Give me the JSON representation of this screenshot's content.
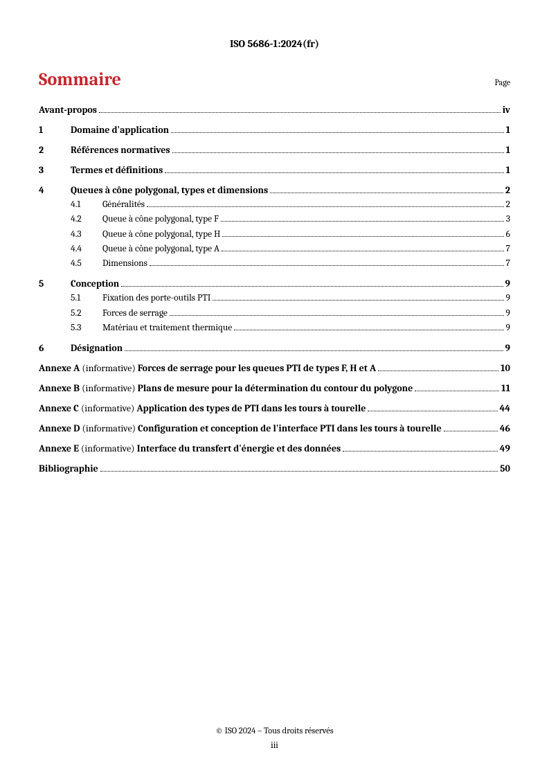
{
  "header": "ISO 5686-1:2024(fr)",
  "title": "Sommaire",
  "page_label": "Page",
  "entries": [
    {
      "kind": "plain-bold",
      "text": "Avant-propos",
      "page": "iv"
    },
    {
      "kind": "section",
      "num": "1",
      "text": "Domaine d'application",
      "page": "1"
    },
    {
      "kind": "section",
      "num": "2",
      "text": "Références normatives",
      "page": "1"
    },
    {
      "kind": "section",
      "num": "3",
      "text": "Termes et définitions",
      "page": "1"
    },
    {
      "kind": "section",
      "num": "4",
      "text": "Queues à cône polygonal, types et dimensions",
      "page": "2"
    },
    {
      "kind": "sub",
      "num": "4.1",
      "text": "Généralités",
      "page": "2"
    },
    {
      "kind": "sub",
      "num": "4.2",
      "text": "Queue à cône polygonal, type F",
      "page": "3"
    },
    {
      "kind": "sub",
      "num": "4.3",
      "text": "Queue à cône polygonal, type H",
      "page": "6"
    },
    {
      "kind": "sub",
      "num": "4.4",
      "text": "Queue à cône polygonal, type A",
      "page": "7"
    },
    {
      "kind": "sub",
      "num": "4.5",
      "text": "Dimensions",
      "page": "7"
    },
    {
      "kind": "section",
      "num": "5",
      "text": "Conception",
      "page": "9"
    },
    {
      "kind": "sub",
      "num": "5.1",
      "text": "Fixation des porte-outils PTI",
      "page": "9"
    },
    {
      "kind": "sub",
      "num": "5.2",
      "text": "Forces de serrage",
      "page": "9"
    },
    {
      "kind": "sub",
      "num": "5.3",
      "text": "Matériau et traitement thermique",
      "page": "9"
    },
    {
      "kind": "section",
      "num": "6",
      "text": "Désignation",
      "page": "9"
    },
    {
      "kind": "annex",
      "label": "Annexe A",
      "note": "(informative)",
      "title": "Forces de serrage pour les queues PTI de types F, H et A",
      "page": "10"
    },
    {
      "kind": "annex",
      "label": "Annexe B",
      "note": "(informative)",
      "title": "Plans de mesure pour la détermination du contour du polygone",
      "page": "11"
    },
    {
      "kind": "annex",
      "label": "Annexe C",
      "note": "(informative)",
      "title": "Application des types de PTI dans les tours à tourelle",
      "page": "44"
    },
    {
      "kind": "annex",
      "label": "Annexe D",
      "note": "(informative)",
      "title": "Configuration et conception de l'interface PTI dans les tours à tourelle",
      "page": "46"
    },
    {
      "kind": "annex",
      "label": "Annexe E",
      "note": "(informative)",
      "title": "Interface du transfert d'énergie et des données",
      "page": "49"
    },
    {
      "kind": "plain-bold",
      "text": "Bibliographie",
      "page": "50"
    }
  ],
  "footer": {
    "copyright": "© ISO 2024 – Tous droits réservés",
    "pagenum": "iii"
  }
}
